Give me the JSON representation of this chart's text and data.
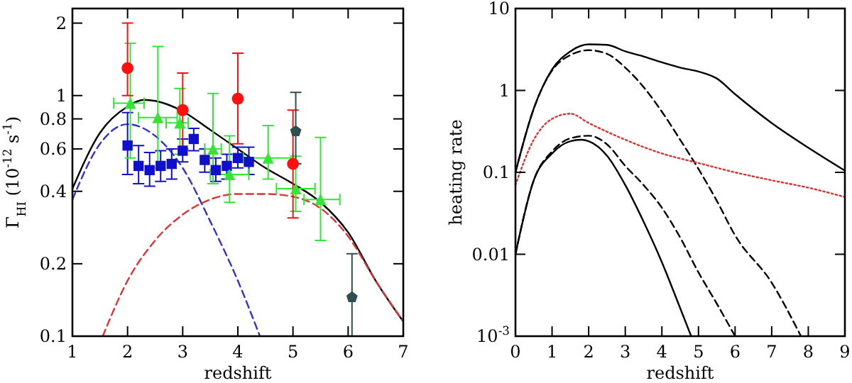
{
  "chart_data": [
    {
      "type": "scatter",
      "ylabel": "Γ$_{HI}$ (10$^{-12}$ s$^{-1}$)",
      "xlabel": "redshift",
      "log": "y",
      "xlim": [
        1,
        7
      ],
      "ylim": [
        0.1,
        2.3
      ],
      "xticks": [
        1,
        2,
        3,
        4,
        5,
        6,
        7
      ],
      "yticks": [
        0.1,
        0.2,
        0.4,
        0.6,
        0.8,
        1,
        2
      ],
      "grid": false,
      "series": [
        {
          "type": "line",
          "color": "#000000",
          "line_style": "solid",
          "x": [
            1,
            1.5,
            2,
            2.3,
            2.5,
            3,
            3.5,
            4,
            4.5,
            5,
            5.5,
            6,
            6.5,
            7
          ],
          "values": [
            0.41,
            0.7,
            0.9,
            0.96,
            0.95,
            0.86,
            0.72,
            0.6,
            0.5,
            0.43,
            0.36,
            0.27,
            0.17,
            0.115
          ]
        },
        {
          "type": "line",
          "color": "#3333cc",
          "line_style": "dashed",
          "x": [
            1,
            1.5,
            2,
            2.5,
            3,
            3.5,
            4,
            4.4
          ],
          "values": [
            0.37,
            0.63,
            0.76,
            0.68,
            0.5,
            0.3,
            0.17,
            0.1
          ]
        },
        {
          "type": "line",
          "color": "#dd3333",
          "line_style": "dashed",
          "x": [
            1.55,
            2,
            2.5,
            3,
            3.5,
            4,
            4.5,
            5,
            5.5,
            6,
            6.5,
            7
          ],
          "values": [
            0.1,
            0.17,
            0.25,
            0.32,
            0.37,
            0.39,
            0.39,
            0.38,
            0.34,
            0.26,
            0.17,
            0.115
          ]
        },
        {
          "marker": "square",
          "color": "#1010cc",
          "x": [
            2,
            2.2,
            2.4,
            2.6,
            2.8,
            3,
            3.2,
            3.4,
            3.6,
            3.8,
            4,
            4.2
          ],
          "values": [
            0.62,
            0.51,
            0.49,
            0.51,
            0.52,
            0.59,
            0.66,
            0.54,
            0.49,
            0.51,
            0.55,
            0.53
          ],
          "errors": [
            [
              0.47,
              0.85
            ],
            [
              0.43,
              0.62
            ],
            [
              0.42,
              0.58
            ],
            [
              0.44,
              0.59
            ],
            [
              0.45,
              0.6
            ],
            [
              0.53,
              0.66
            ],
            [
              0.59,
              0.73
            ],
            [
              0.48,
              0.6
            ],
            [
              0.44,
              0.55
            ],
            [
              0.45,
              0.57
            ],
            [
              0.5,
              0.61
            ],
            [
              0.47,
              0.61
            ]
          ]
        },
        {
          "marker": "triangle",
          "color": "#33e633",
          "x": [
            2.05,
            2.55,
            2.95,
            3.55,
            3.85,
            4.55,
            5.05,
            5.5
          ],
          "values": [
            0.93,
            0.81,
            0.77,
            0.6,
            0.47,
            0.55,
            0.41,
            0.37
          ],
          "errors": [
            [
              0.55,
              1.65
            ],
            [
              0.5,
              1.6
            ],
            [
              0.57,
              1.07
            ],
            [
              0.43,
              1.02
            ],
            [
              0.36,
              0.68
            ],
            [
              0.45,
              0.75
            ],
            [
              0.33,
              0.56
            ],
            [
              0.25,
              0.67
            ]
          ],
          "xerrors": [
            [
              1.75,
              2.3
            ],
            [
              2.2,
              2.9
            ],
            [
              2.7,
              3.1
            ],
            [
              3.4,
              3.7
            ],
            [
              3.5,
              4.2
            ],
            [
              4.1,
              5
            ],
            [
              4.7,
              5.4
            ],
            [
              5.2,
              5.85
            ]
          ]
        },
        {
          "marker": "circle",
          "color": "#ff1010",
          "x": [
            2,
            3,
            4,
            5
          ],
          "values": [
            1.3,
            0.87,
            0.97,
            0.52
          ],
          "errors": [
            [
              1,
              2
            ],
            [
              0.6,
              1.24
            ],
            [
              0.63,
              1.5
            ],
            [
              0.31,
              0.87
            ]
          ]
        },
        {
          "color": "#2f4f4f",
          "x": [
            5.05,
            6.07
          ],
          "values": [
            0.71,
            0.145
          ],
          "errors": [
            [
              0.52,
              1.03
            ],
            [
              0.1,
              0.22
            ]
          ]
        }
      ]
    },
    {
      "type": "line",
      "ylabel": "heating rate",
      "xlabel": "redshift",
      "log": "y",
      "xlim": [
        0,
        9
      ],
      "ylim": [
        0.001,
        10
      ],
      "xticks": [
        0,
        1,
        2,
        3,
        4,
        5,
        6,
        7,
        8,
        9
      ],
      "yticks": [
        {
          "value": 0.001,
          "label": "10$^{-3}$"
        },
        0.01,
        0.1,
        1,
        10
      ],
      "grid": false,
      "series": [
        {
          "color": "#000000",
          "line_style": "solid",
          "x": [
            0,
            0.5,
            1,
            1.5,
            2,
            2.5,
            3,
            3.5,
            4,
            4.5,
            5,
            5.5,
            6,
            7,
            8,
            9
          ],
          "values": [
            0.1,
            0.6,
            1.8,
            3,
            3.65,
            3.6,
            3,
            2.6,
            2.2,
            1.9,
            1.7,
            1.4,
            0.9,
            0.4,
            0.2,
            0.105
          ]
        },
        {
          "color": "#000000",
          "line_style": "dashed",
          "x": [
            0,
            0.5,
            1,
            1.5,
            2,
            2.5,
            3,
            3.5,
            4,
            4.5,
            5,
            5.5,
            6,
            7,
            7.8
          ],
          "values": [
            0.1,
            0.6,
            1.75,
            2.7,
            3.1,
            2.8,
            1.9,
            1.1,
            0.55,
            0.25,
            0.11,
            0.045,
            0.017,
            0.0045,
            0.001
          ]
        },
        {
          "color": "#e03030",
          "line_style": "dotted",
          "x": [
            0,
            0.5,
            1,
            1.5,
            2,
            3,
            4,
            5,
            6,
            7,
            8,
            9
          ],
          "values": [
            0.07,
            0.25,
            0.45,
            0.52,
            0.4,
            0.25,
            0.17,
            0.13,
            0.1,
            0.08,
            0.065,
            0.05
          ]
        },
        {
          "color": "#000000",
          "line_style": "solid",
          "x": [
            0,
            0.5,
            1,
            1.5,
            1.8,
            2,
            2.5,
            3,
            3.5,
            4,
            4.5,
            4.8
          ],
          "values": [
            0.01,
            0.08,
            0.17,
            0.24,
            0.25,
            0.24,
            0.16,
            0.07,
            0.025,
            0.008,
            0.0022,
            0.001
          ]
        },
        {
          "color": "#000000",
          "line_style": "dashed",
          "x": [
            0,
            0.5,
            1,
            1.5,
            2,
            2.5,
            3,
            3.5,
            4,
            4.5,
            5,
            5.5,
            6
          ],
          "values": [
            0.01,
            0.08,
            0.18,
            0.26,
            0.28,
            0.22,
            0.12,
            0.07,
            0.037,
            0.016,
            0.006,
            0.0025,
            0.001
          ]
        }
      ]
    }
  ]
}
